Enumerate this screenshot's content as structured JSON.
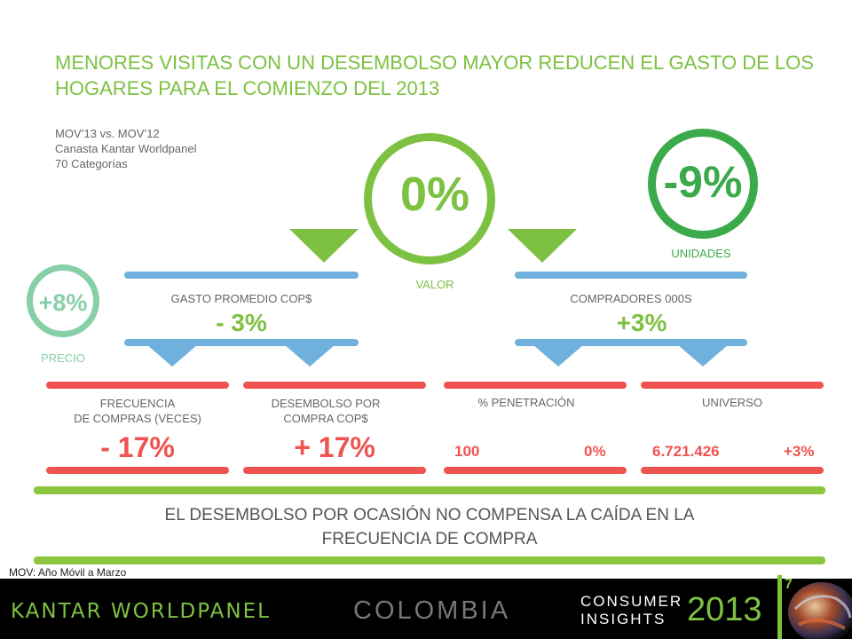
{
  "title": "MENORES VISITAS CON UN DESEMBOLSO MAYOR REDUCEN EL GASTO DE LOS HOGARES PARA EL COMIENZO DEL 2013",
  "meta": [
    "MOV’13  vs. MOV’12",
    "Canasta Kantar Worldpanel",
    "70 Categorías"
  ],
  "valor": {
    "value": "0%",
    "label": "VALOR"
  },
  "unidades": {
    "value": "-9%",
    "label": "UNIDADES"
  },
  "precio": {
    "value": "+8%",
    "label": "PRECIO"
  },
  "gasto": {
    "label": "GASTO  PROMEDIO COP$",
    "value": "- 3%"
  },
  "compradores": {
    "label": "COMPRADORES 000S",
    "value": "+3%"
  },
  "frecuencia": {
    "label1": "FRECUENCIA",
    "label2": "DE COMPRAS (VECES)",
    "value": "- 17%"
  },
  "desembolso": {
    "label1": "DESEMBOLSO POR",
    "label2": "COMPRA COP$",
    "value": "+ 17%"
  },
  "penetracion": {
    "label": "% PENETRACIÓN",
    "value_left": "100",
    "value_right": "0%"
  },
  "universo": {
    "label": "UNIVERSO",
    "value_left": "6.721.426",
    "value_right": "+3%"
  },
  "conclusion": {
    "line1": "EL DESEMBOLSO POR OCASIÓN NO COMPENSA LA CAÍDA EN LA",
    "line2": "FRECUENCIA DE COMPRA"
  },
  "footnote": "MOV: Año Móvil a Marzo",
  "footer": {
    "brand": "KANTAR WORLDPANEL",
    "country": "COLOMBIA",
    "ci1": "CONSUMER",
    "ci2": "INSIGHTS",
    "year": "2013",
    "page": "7"
  },
  "colors": {
    "green": "#7dc142",
    "dark_green": "#3aaa4a",
    "mint": "#86cfa7",
    "blue": "#6fb0dc",
    "red": "#ef5350"
  }
}
